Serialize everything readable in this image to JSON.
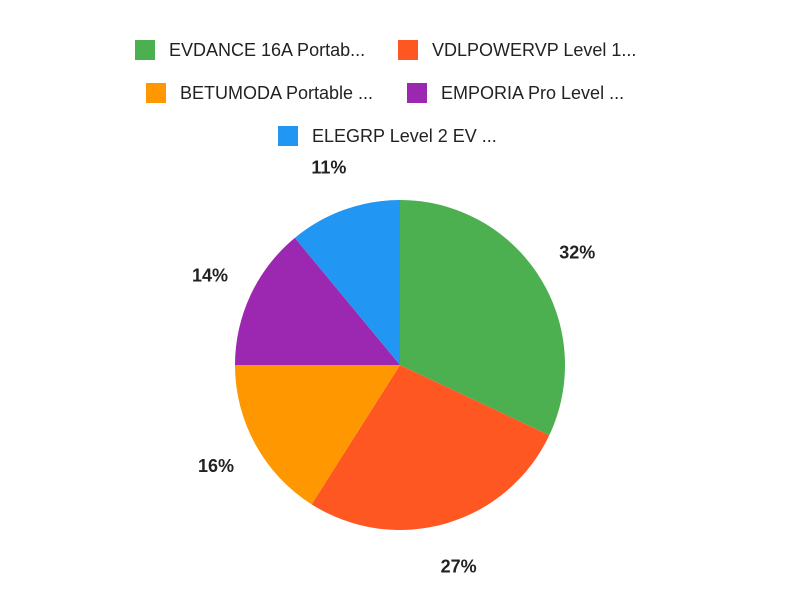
{
  "chart_data": {
    "type": "pie",
    "legend_position": "top",
    "slices": [
      {
        "label": "EVDANCE 16A Portab...",
        "value": 32,
        "value_label": "32%",
        "color": "#4CAF50"
      },
      {
        "label": "VDLPOWERVP Level 1...",
        "value": 27,
        "value_label": "27%",
        "color": "#FF5722"
      },
      {
        "label": "BETUMODA Portable ...",
        "value": 16,
        "value_label": "16%",
        "color": "#FF9800"
      },
      {
        "label": "EMPORIA Pro Level ...",
        "value": 14,
        "value_label": "14%",
        "color": "#9C27B0"
      },
      {
        "label": "ELEGRP Level 2 EV ...",
        "value": 11,
        "value_label": "11%",
        "color": "#2196F3"
      }
    ]
  }
}
